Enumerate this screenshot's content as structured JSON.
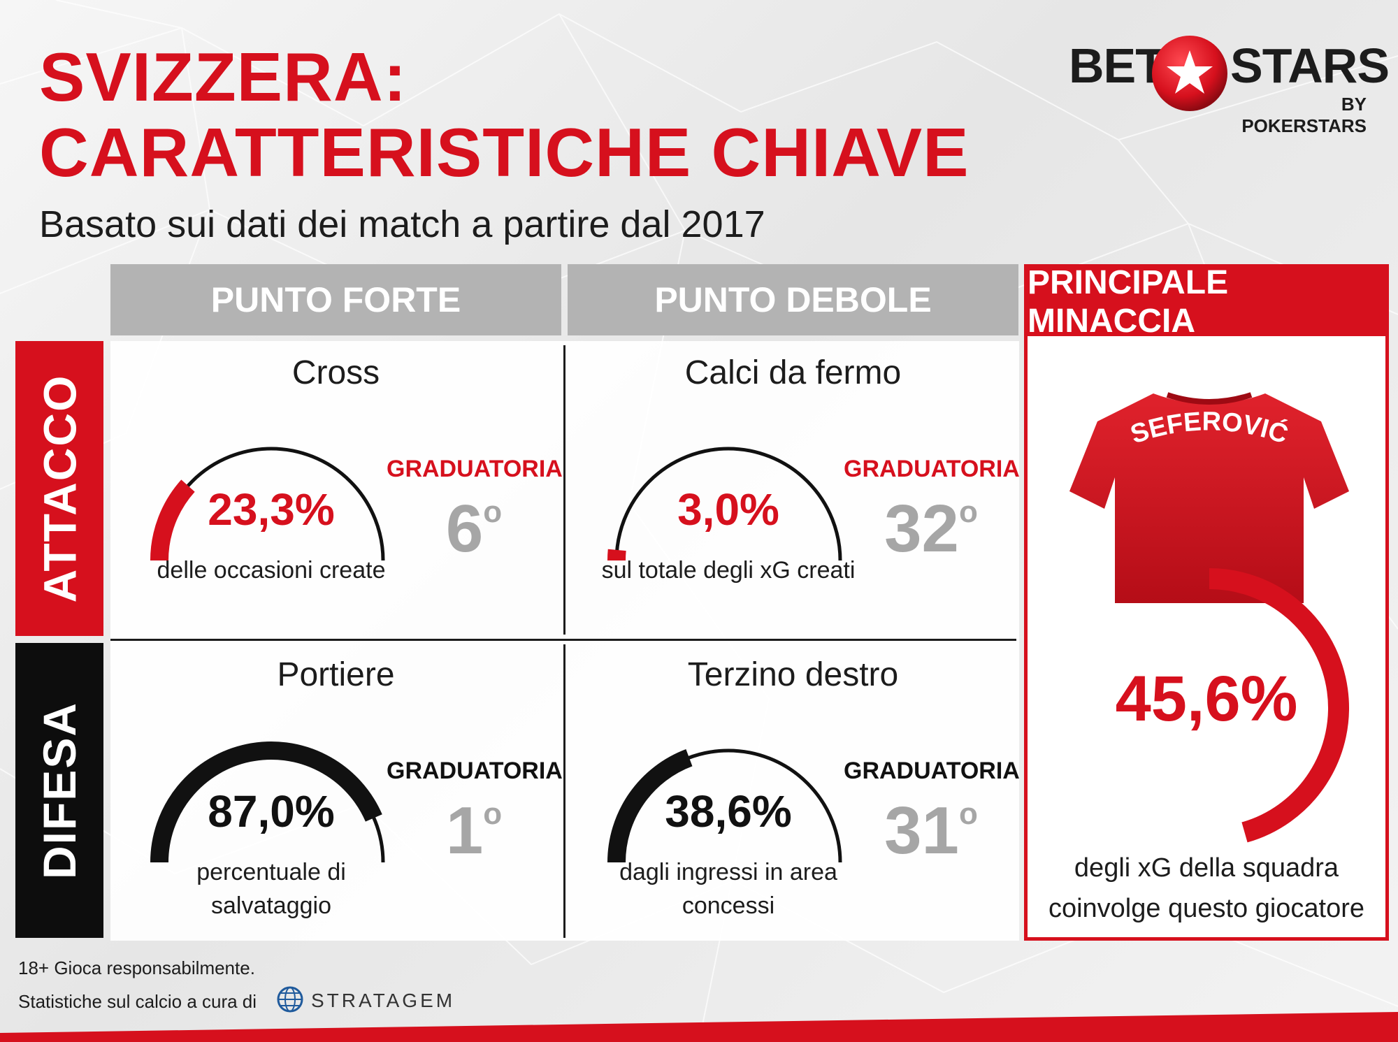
{
  "title_line1": "SVIZZERA:",
  "title_line2": "CARATTERISTICHE CHIAVE",
  "subtitle": "Basato sui dati dei match a partire dal 2017",
  "logo": {
    "bet": "BET",
    "stars": "STARS",
    "by": "BY POKERSTARS"
  },
  "headers": {
    "forte": "PUNTO FORTE",
    "debole": "PUNTO DEBOLE",
    "threat": "PRINCIPALE MINACCIA"
  },
  "rows": {
    "attacco": "ATTACCO",
    "difesa": "DIFESA"
  },
  "cells": {
    "att_forte": {
      "title": "Cross",
      "value": "23,3%",
      "percent": 23.3,
      "desc": "delle occasioni create",
      "rank_label": "GRADUATORIA",
      "rank": "6",
      "rank_suffix": "o"
    },
    "att_debole": {
      "title": "Calci da fermo",
      "value": "3,0%",
      "percent": 3.0,
      "desc": "sul totale degli xG creati",
      "rank_label": "GRADUATORIA",
      "rank": "32",
      "rank_suffix": "o"
    },
    "dif_forte": {
      "title": "Portiere",
      "value": "87,0%",
      "percent": 87.0,
      "desc_line1": "percentuale di",
      "desc_line2": "salvataggio",
      "rank_label": "GRADUATORIA",
      "rank": "1",
      "rank_suffix": "o"
    },
    "dif_debole": {
      "title": "Terzino destro",
      "value": "38,6%",
      "percent": 38.6,
      "desc_line1": "dagli ingressi in area",
      "desc_line2": "concessi",
      "rank_label": "GRADUATORIA",
      "rank": "31",
      "rank_suffix": "o"
    }
  },
  "threat": {
    "player": "SEFEROVIĆ",
    "value": "45,6%",
    "percent": 45.6,
    "desc_line1": "degli xG della squadra",
    "desc_line2": "coinvolge questo giocatore"
  },
  "footer": {
    "line1": "18+ Gioca responsabilmente.",
    "line2": "Statistiche sul calcio a cura di",
    "provider": "STRATAGEM"
  },
  "colors": {
    "red": "#d6101d",
    "black": "#111111",
    "grey_header": "#b3b3b3",
    "rank_grey": "#a6a6a6"
  }
}
